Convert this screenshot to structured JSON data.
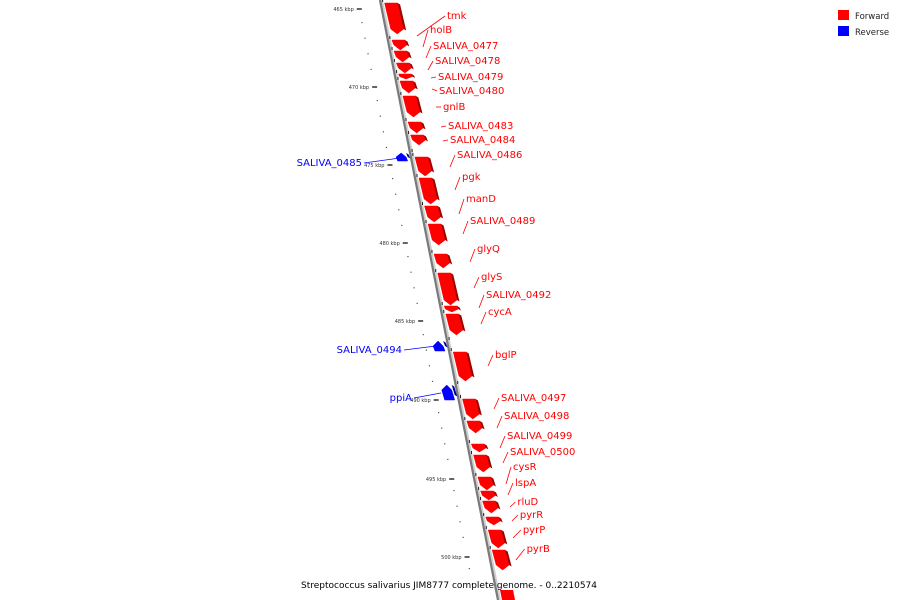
{
  "legend": [
    {
      "label": "Forward",
      "color": "#ff0000"
    },
    {
      "label": "Reverse",
      "color": "#0000ff"
    }
  ],
  "caption": "Streptococcus salivarius JIM8777 complete genome. - 0..2210574",
  "ticks": [
    "465 kbp",
    "470 kbp",
    "475 kbp",
    "480 kbp",
    "485 kbp",
    "490 kbp",
    "495 kbp",
    "500 kbp"
  ],
  "colors": {
    "forward": "#ff0000",
    "reverse": "#0000ff",
    "backbone": "#7a7a7a"
  },
  "genes": [
    {
      "name": "tmk",
      "strand": "forward"
    },
    {
      "name": "holB",
      "strand": "forward"
    },
    {
      "name": "SALIVA_0477",
      "strand": "forward"
    },
    {
      "name": "SALIVA_0478",
      "strand": "forward"
    },
    {
      "name": "SALIVA_0479",
      "strand": "forward"
    },
    {
      "name": "SALIVA_0480",
      "strand": "forward"
    },
    {
      "name": "gnlB",
      "strand": "forward"
    },
    {
      "name": "SALIVA_0483",
      "strand": "forward"
    },
    {
      "name": "SALIVA_0484",
      "strand": "forward"
    },
    {
      "name": "SALIVA_0485",
      "strand": "reverse"
    },
    {
      "name": "SALIVA_0486",
      "strand": "forward"
    },
    {
      "name": "pgk",
      "strand": "forward"
    },
    {
      "name": "manD",
      "strand": "forward"
    },
    {
      "name": "SALIVA_0489",
      "strand": "forward"
    },
    {
      "name": "glyQ",
      "strand": "forward"
    },
    {
      "name": "glyS",
      "strand": "forward"
    },
    {
      "name": "SALIVA_0492",
      "strand": "forward"
    },
    {
      "name": "cycA",
      "strand": "forward"
    },
    {
      "name": "SALIVA_0494",
      "strand": "reverse"
    },
    {
      "name": "bglP",
      "strand": "forward"
    },
    {
      "name": "ppiA",
      "strand": "reverse"
    },
    {
      "name": "SALIVA_0497",
      "strand": "forward"
    },
    {
      "name": "SALIVA_0498",
      "strand": "forward"
    },
    {
      "name": "SALIVA_0499",
      "strand": "forward"
    },
    {
      "name": "SALIVA_0500",
      "strand": "forward"
    },
    {
      "name": "cysR",
      "strand": "forward"
    },
    {
      "name": "lspA",
      "strand": "forward"
    },
    {
      "name": "rluD",
      "strand": "forward"
    },
    {
      "name": "pyrR",
      "strand": "forward"
    },
    {
      "name": "pyrP",
      "strand": "forward"
    },
    {
      "name": "pyrB",
      "strand": "forward"
    }
  ]
}
